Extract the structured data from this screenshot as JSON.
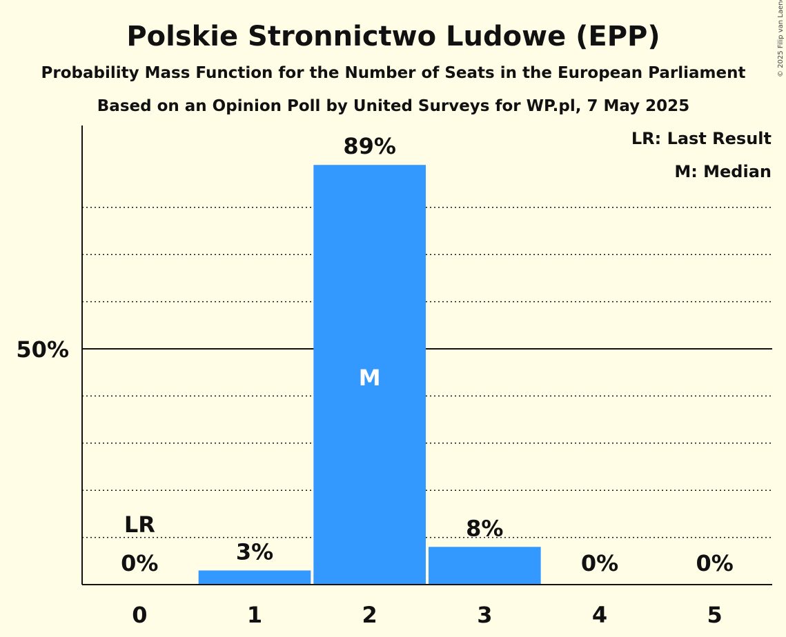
{
  "chart_data": {
    "type": "bar",
    "title": "Polskie Stronnictwo Ludowe (EPP)",
    "subtitle_1": "Probability Mass Function for the Number of Seats in the European Parliament",
    "subtitle_2": "Based on an Opinion Poll by United Surveys for WP.pl, 7 May 2025",
    "copyright": "© 2025 Filip van Laenen",
    "legend": {
      "last_result": "LR: Last Result",
      "median": "M: Median",
      "placement": "top-right"
    },
    "categories": [
      "0",
      "1",
      "2",
      "3",
      "4",
      "5"
    ],
    "values": [
      0,
      3,
      89,
      8,
      0,
      0
    ],
    "value_labels": [
      "0%",
      "3%",
      "89%",
      "8%",
      "0%",
      "0%"
    ],
    "ylim": [
      0,
      97
    ],
    "y_ticks": [
      {
        "value": 50,
        "label": "50%"
      }
    ],
    "gridlines": [
      10,
      20,
      30,
      40,
      60,
      70,
      80
    ],
    "last_result_index": 0,
    "last_result_label": "LR",
    "median_index": 2,
    "median_label": "M",
    "bar_color": "#3399ff",
    "grid": true
  }
}
